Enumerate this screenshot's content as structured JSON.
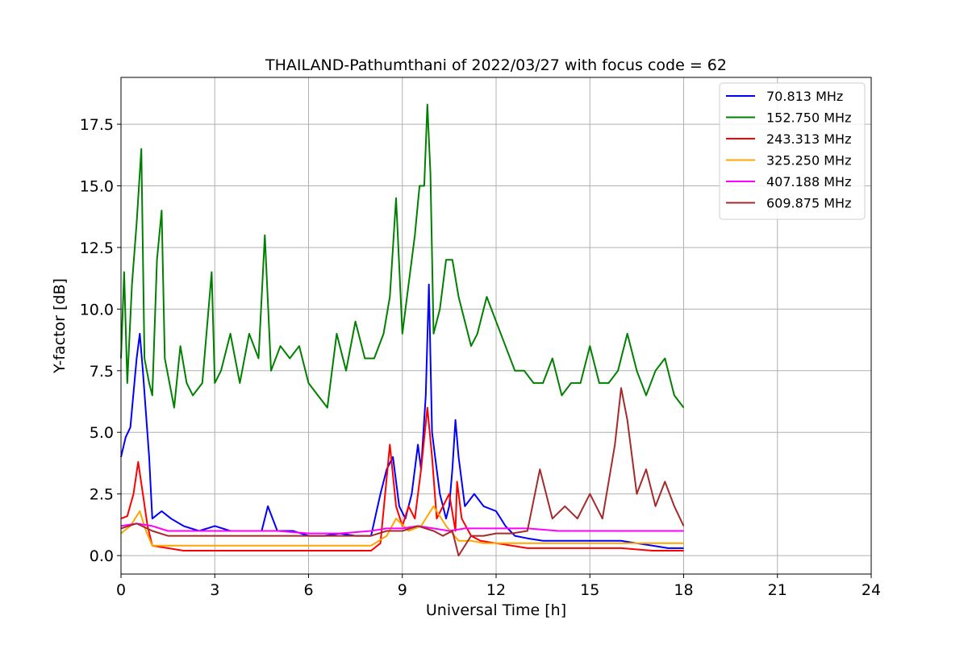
{
  "chart_data": {
    "type": "line",
    "title": "THAILAND-Pathumthani of 2022/03/27 with focus code = 62",
    "xlabel": "Universal Time [h]",
    "ylabel": "Y-factor [dB]",
    "xlim": [
      0,
      24
    ],
    "ylim": [
      -0.75,
      19.4
    ],
    "xticks": [
      0,
      3,
      6,
      9,
      12,
      15,
      18,
      21,
      24
    ],
    "xtick_labels": [
      "0",
      "3",
      "6",
      "9",
      "12",
      "15",
      "18",
      "21",
      "24"
    ],
    "yticks": [
      0,
      2.5,
      5,
      7.5,
      10,
      12.5,
      15,
      17.5
    ],
    "ytick_labels": [
      "0.0",
      "2.5",
      "5.0",
      "7.5",
      "10.0",
      "12.5",
      "15.0",
      "17.5"
    ],
    "grid": true,
    "legend_position": "top-right",
    "series": [
      {
        "name": " 70.813 MHz",
        "color": "#0000ff",
        "x": [
          0,
          0.15,
          0.3,
          0.5,
          0.6,
          0.7,
          0.9,
          1.0,
          1.3,
          1.6,
          2.0,
          2.5,
          3.0,
          3.5,
          4.0,
          4.5,
          4.7,
          5.0,
          5.5,
          6.0,
          6.5,
          7.0,
          7.5,
          8.0,
          8.3,
          8.5,
          8.7,
          8.9,
          9.1,
          9.3,
          9.5,
          9.6,
          9.75,
          9.85,
          9.95,
          10.05,
          10.2,
          10.4,
          10.5,
          10.6,
          10.7,
          10.8,
          11.0,
          11.3,
          11.6,
          12.0,
          12.3,
          12.6,
          13.0,
          13.5,
          14.0,
          14.5,
          15.0,
          15.5,
          16.0,
          16.5,
          17.0,
          17.5,
          18.0
        ],
        "y": [
          4.0,
          4.8,
          5.2,
          8.0,
          9.0,
          7.5,
          4.0,
          1.5,
          1.8,
          1.5,
          1.2,
          1.0,
          1.2,
          1.0,
          1.0,
          1.0,
          2.0,
          1.0,
          1.0,
          0.8,
          0.8,
          0.9,
          0.8,
          0.8,
          2.5,
          3.5,
          4.0,
          2.0,
          1.5,
          2.5,
          4.5,
          3.5,
          6.5,
          11.0,
          5.0,
          4.0,
          2.5,
          1.5,
          2.0,
          3.5,
          5.5,
          4.0,
          2.0,
          2.5,
          2.0,
          1.8,
          1.2,
          0.8,
          0.7,
          0.6,
          0.6,
          0.6,
          0.6,
          0.6,
          0.6,
          0.5,
          0.4,
          0.3,
          0.3
        ]
      },
      {
        "name": "152.750 MHz",
        "color": "#008000",
        "x": [
          0,
          0.1,
          0.2,
          0.35,
          0.5,
          0.65,
          0.75,
          0.9,
          1.0,
          1.15,
          1.3,
          1.4,
          1.55,
          1.7,
          1.9,
          2.1,
          2.3,
          2.6,
          2.9,
          3.0,
          3.2,
          3.5,
          3.8,
          4.1,
          4.4,
          4.6,
          4.8,
          5.1,
          5.4,
          5.7,
          6.0,
          6.3,
          6.6,
          6.9,
          7.2,
          7.5,
          7.8,
          8.1,
          8.4,
          8.6,
          8.8,
          9.0,
          9.2,
          9.4,
          9.55,
          9.7,
          9.8,
          9.9,
          10.0,
          10.2,
          10.4,
          10.6,
          10.8,
          11.0,
          11.2,
          11.4,
          11.7,
          12.0,
          12.3,
          12.6,
          12.9,
          13.2,
          13.5,
          13.8,
          14.1,
          14.4,
          14.7,
          15.0,
          15.3,
          15.6,
          15.9,
          16.2,
          16.5,
          16.8,
          17.1,
          17.4,
          17.7,
          18.0
        ],
        "y": [
          8.0,
          11.5,
          7.0,
          11.0,
          13.5,
          16.5,
          8.0,
          7.0,
          6.5,
          12.0,
          14.0,
          8.0,
          7.0,
          6.0,
          8.5,
          7.0,
          6.5,
          7.0,
          11.5,
          7.0,
          7.5,
          9.0,
          7.0,
          9.0,
          8.0,
          13.0,
          7.5,
          8.5,
          8.0,
          8.5,
          7.0,
          6.5,
          6.0,
          9.0,
          7.5,
          9.5,
          8.0,
          8.0,
          9.0,
          10.5,
          14.5,
          9.0,
          11.0,
          13.0,
          15.0,
          15.0,
          18.3,
          15.5,
          9.0,
          10.0,
          12.0,
          12.0,
          10.5,
          9.5,
          8.5,
          9.0,
          10.5,
          9.5,
          8.5,
          7.5,
          7.5,
          7.0,
          7.0,
          8.0,
          6.5,
          7.0,
          7.0,
          8.5,
          7.0,
          7.0,
          7.5,
          9.0,
          7.5,
          6.5,
          7.5,
          8.0,
          6.5,
          6.0
        ]
      },
      {
        "name": "243.313 MHz",
        "color": "#ff0000",
        "x": [
          0,
          0.2,
          0.4,
          0.55,
          0.7,
          0.85,
          1.0,
          1.5,
          2.0,
          3.0,
          4.0,
          5.0,
          6.0,
          7.0,
          8.0,
          8.3,
          8.6,
          8.8,
          9.0,
          9.2,
          9.4,
          9.6,
          9.8,
          9.95,
          10.1,
          10.3,
          10.5,
          10.7,
          10.75,
          10.9,
          11.2,
          11.5,
          12.0,
          12.5,
          13.0,
          13.5,
          14.0,
          15.0,
          16.0,
          17.0,
          18.0
        ],
        "y": [
          1.5,
          1.6,
          2.5,
          3.8,
          2.5,
          1.2,
          0.4,
          0.3,
          0.2,
          0.2,
          0.2,
          0.2,
          0.2,
          0.2,
          0.2,
          0.5,
          4.5,
          2.0,
          1.2,
          2.0,
          1.5,
          3.5,
          6.0,
          4.0,
          1.5,
          2.0,
          2.5,
          1.0,
          3.0,
          1.5,
          0.8,
          0.6,
          0.5,
          0.4,
          0.3,
          0.3,
          0.3,
          0.3,
          0.3,
          0.2,
          0.2
        ]
      },
      {
        "name": "325.250 MHz",
        "color": "#ffa500",
        "x": [
          0,
          0.3,
          0.6,
          0.8,
          1.0,
          1.5,
          2.0,
          3.0,
          4.0,
          5.0,
          6.0,
          7.0,
          8.0,
          8.5,
          8.8,
          9.2,
          9.6,
          10.0,
          10.4,
          10.8,
          11.2,
          11.6,
          12.0,
          12.5,
          13.0,
          14.0,
          15.0,
          16.0,
          17.0,
          18.0
        ],
        "y": [
          0.9,
          1.2,
          1.8,
          1.0,
          0.4,
          0.4,
          0.4,
          0.4,
          0.4,
          0.4,
          0.4,
          0.4,
          0.4,
          0.8,
          1.5,
          1.0,
          1.2,
          2.0,
          1.2,
          0.6,
          0.6,
          0.5,
          0.5,
          0.5,
          0.5,
          0.5,
          0.5,
          0.5,
          0.5,
          0.5
        ]
      },
      {
        "name": "407.188 MHz",
        "color": "#ff00ff",
        "x": [
          0,
          0.5,
          1.0,
          1.5,
          2.0,
          3.0,
          4.0,
          5.0,
          6.0,
          7.0,
          8.0,
          8.5,
          9.0,
          9.5,
          10.0,
          10.5,
          11.0,
          11.5,
          12.0,
          12.5,
          13.0,
          14.0,
          15.0,
          16.0,
          17.0,
          18.0
        ],
        "y": [
          1.2,
          1.3,
          1.2,
          1.0,
          1.0,
          1.0,
          1.0,
          1.0,
          0.9,
          0.9,
          1.0,
          1.1,
          1.1,
          1.2,
          1.1,
          1.0,
          1.1,
          1.1,
          1.1,
          1.1,
          1.1,
          1.0,
          1.0,
          1.0,
          1.0,
          1.0
        ]
      },
      {
        "name": "609.875 MHz",
        "color": "#a52a2a",
        "x": [
          0,
          0.5,
          1.0,
          1.5,
          2.0,
          3.0,
          4.0,
          5.0,
          6.0,
          7.0,
          8.0,
          8.5,
          9.0,
          9.5,
          10.0,
          10.3,
          10.6,
          10.8,
          11.2,
          11.6,
          12.0,
          12.5,
          13.0,
          13.4,
          13.8,
          14.2,
          14.6,
          15.0,
          15.4,
          15.8,
          16.0,
          16.2,
          16.5,
          16.8,
          17.1,
          17.4,
          17.7,
          18.0
        ],
        "y": [
          1.1,
          1.3,
          1.0,
          0.8,
          0.8,
          0.8,
          0.8,
          0.8,
          0.8,
          0.8,
          0.8,
          1.0,
          1.0,
          1.2,
          1.0,
          0.8,
          1.0,
          0.0,
          0.8,
          0.8,
          0.9,
          0.9,
          1.0,
          3.5,
          1.5,
          2.0,
          1.5,
          2.5,
          1.5,
          4.5,
          6.8,
          5.5,
          2.5,
          3.5,
          2.0,
          3.0,
          2.0,
          1.2
        ]
      }
    ]
  }
}
